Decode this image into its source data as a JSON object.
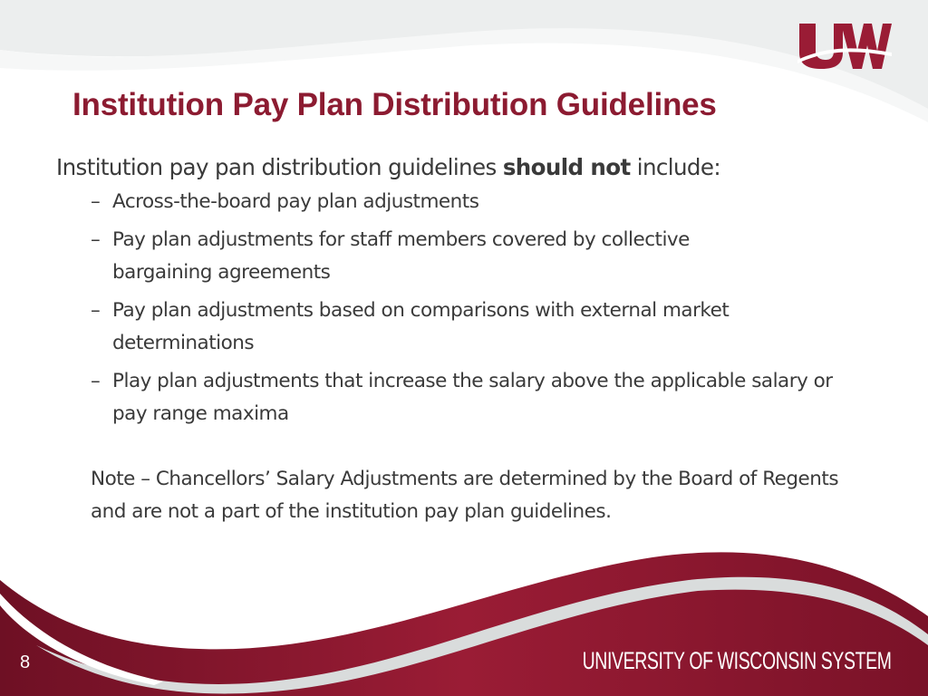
{
  "slide": {
    "title": "Institution Pay Plan Distribution Guidelines",
    "lead_prefix": "Institution pay pan distribution guidelines ",
    "lead_bold": "should not",
    "lead_suffix": " include:",
    "bullets": [
      {
        "dash": "–",
        "text": "Across-the-board pay plan adjustments"
      },
      {
        "dash": "–",
        "text": "Pay plan adjustments for staff members covered by collective bargaining agreements"
      },
      {
        "dash": "–",
        "text": "Pay plan adjustments based on comparisons with external market determinations"
      },
      {
        "dash": "–",
        "text": "Play plan adjustments that increase the salary above the applicable salary or pay range maxima"
      }
    ],
    "note": "Note – Chancellors’ Salary Adjustments are determined by the Board of Regents and are not a part of the institution pay plan guidelines.",
    "page_number": "8",
    "footer": "UNIVERSITY OF WISCONSIN SYSTEM",
    "logo_text": "UW"
  },
  "colors": {
    "brand": "#8c1b31",
    "text": "#3a3a3a",
    "band": "#d9dcdc"
  }
}
